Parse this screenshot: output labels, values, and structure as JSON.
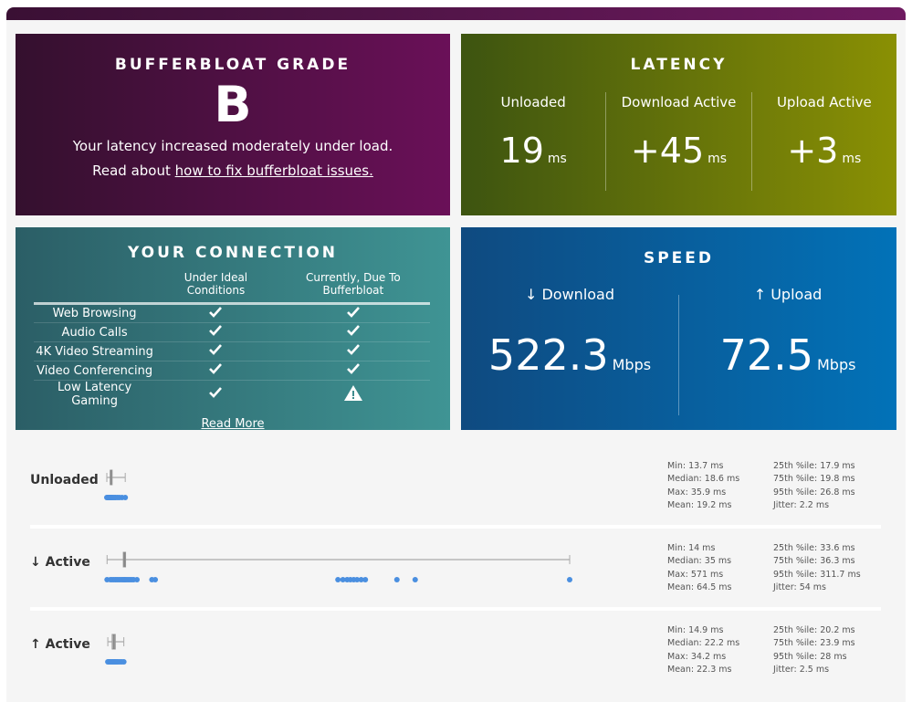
{
  "grade": {
    "title": "BUFFERBLOAT GRADE",
    "grade": "B",
    "text": "Your latency increased moderately under load.",
    "read_prefix": "Read about",
    "link": "how to fix bufferbloat issues."
  },
  "latency": {
    "title": "LATENCY",
    "cols": [
      {
        "label": "Unloaded",
        "value": "19",
        "unit": "ms"
      },
      {
        "label": "Download Active",
        "value": "+45",
        "unit": "ms"
      },
      {
        "label": "Upload Active",
        "value": "+3",
        "unit": "ms"
      }
    ]
  },
  "connection": {
    "title": "YOUR CONNECTION",
    "headers": [
      "",
      "Under Ideal Conditions",
      "Currently, Due To Bufferbloat"
    ],
    "rows": [
      {
        "name": "Web Browsing",
        "ideal": "check",
        "current": "check"
      },
      {
        "name": "Audio Calls",
        "ideal": "check",
        "current": "check"
      },
      {
        "name": "4K Video Streaming",
        "ideal": "check",
        "current": "check"
      },
      {
        "name": "Video Conferencing",
        "ideal": "check",
        "current": "check"
      },
      {
        "name": "Low Latency Gaming",
        "ideal": "check",
        "current": "warning"
      }
    ],
    "read_more": "Read More"
  },
  "speed": {
    "title": "SPEED",
    "cols": [
      {
        "label": "↓ Download",
        "value": "522.3",
        "unit": "Mbps"
      },
      {
        "label": "↑ Upload",
        "value": "72.5",
        "unit": "Mbps"
      }
    ]
  },
  "colors": {
    "dots": "#4a8fe0",
    "box": "#999999"
  },
  "chart_data": {
    "type": "boxplot",
    "axis_range_ms": [
      13.7,
      571
    ],
    "rows": [
      {
        "label": "Unloaded",
        "min": 13.7,
        "q1": 17.9,
        "median": 18.6,
        "q3": 19.8,
        "max": 35.9,
        "stats": [
          "Min: 13.7 ms",
          "25th %ile: 17.9 ms",
          "Median: 18.6 ms",
          "75th %ile: 19.8 ms",
          "Max: 35.9 ms",
          "95th %ile: 26.8 ms",
          "Mean: 19.2 ms",
          "Jitter: 2.2 ms"
        ],
        "samples": [
          13.7,
          14.5,
          15.2,
          16,
          16.8,
          17.5,
          17.9,
          18.2,
          18.6,
          19,
          19.4,
          19.8,
          20.5,
          21.5,
          23,
          24.5,
          26.8,
          29,
          32,
          35.9
        ]
      },
      {
        "label": "↓ Active",
        "min": 14,
        "q1": 33.6,
        "median": 35,
        "q3": 36.3,
        "max": 571,
        "stats": [
          "Min: 14 ms",
          "25th %ile: 33.6 ms",
          "Median: 35 ms",
          "75th %ile: 36.3 ms",
          "Max: 571 ms",
          "95th %ile: 311.7 ms",
          "Mean: 64.5 ms",
          "Jitter: 54 ms"
        ],
        "samples": [
          14,
          18,
          20,
          22,
          24,
          26,
          28,
          30,
          32,
          33.6,
          35,
          36.3,
          38,
          40,
          42,
          44,
          46,
          50,
          68,
          72,
          292,
          298,
          303,
          307,
          311,
          315,
          320,
          325,
          363,
          385,
          571
        ]
      },
      {
        "label": "↑ Active",
        "min": 14.9,
        "q1": 20.2,
        "median": 22.2,
        "q3": 23.9,
        "max": 34.2,
        "stats": [
          "Min: 14.9 ms",
          "25th %ile: 20.2 ms",
          "Median: 22.2 ms",
          "75th %ile: 23.9 ms",
          "Max: 34.2 ms",
          "95th %ile: 28 ms",
          "Mean: 22.3 ms",
          "Jitter: 2.5 ms"
        ],
        "samples": [
          14.9,
          16,
          17,
          18,
          19,
          20.2,
          21,
          22.2,
          23,
          23.9,
          25,
          26.5,
          28,
          30,
          32,
          34.2
        ]
      }
    ]
  }
}
